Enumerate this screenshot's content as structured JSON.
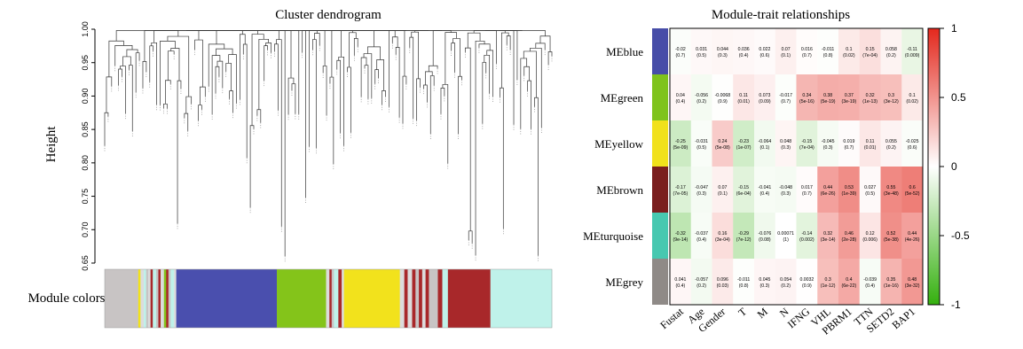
{
  "chart_data": [
    {
      "type": "dendrogram",
      "title": "Cluster dendrogram",
      "ylabel": "Height",
      "ylim": [
        0.65,
        1.0
      ],
      "yticks": [
        "0.65",
        "0.70",
        "0.75",
        "0.80",
        "0.85",
        "0.90",
        "0.95",
        "1.00"
      ],
      "color_bar_label": "Module colors",
      "module_colors": {
        "grey": "#c8c4c4",
        "yellow": "#f2e21c",
        "turquoise": "#bff2ea",
        "brown": "#a8282a",
        "blue": "#4a4fae",
        "green": "#84c41a",
        "light": "#dcdcdc"
      }
    },
    {
      "type": "heatmap",
      "title": "Module-trait relationships",
      "rows": [
        "MEblue",
        "MEgreen",
        "MEyellow",
        "MEbrown",
        "MEturquoise",
        "MEgrey"
      ],
      "row_colors": [
        "#474da8",
        "#7fc31c",
        "#f1e11c",
        "#7a1e1e",
        "#47c8b0",
        "#8f8a87"
      ],
      "columns": [
        "Fustat",
        "Age",
        "Gender",
        "T",
        "M",
        "N",
        "IFNG",
        "VHL",
        "PBRM1",
        "TTN",
        "SETD2",
        "BAP1"
      ],
      "values": [
        [
          -0.02,
          0.031,
          0.044,
          0.036,
          0.022,
          0.07,
          0.016,
          -0.011,
          0.1,
          0.15,
          0.058,
          -0.11
        ],
        [
          0.04,
          -0.056,
          -0.0068,
          0.11,
          0.073,
          -0.017,
          0.34,
          0.38,
          0.37,
          0.32,
          0.3,
          0.1
        ],
        [
          -0.25,
          -0.031,
          0.24,
          -0.23,
          -0.064,
          0.048,
          -0.15,
          -0.045,
          0.019,
          0.11,
          0.055,
          -0.025
        ],
        [
          -0.17,
          -0.047,
          0.07,
          -0.15,
          -0.041,
          -0.048,
          0.017,
          0.44,
          0.53,
          0.027,
          0.55,
          0.6
        ],
        [
          -0.32,
          -0.037,
          0.16,
          -0.29,
          -0.076,
          0.00071,
          -0.14,
          0.32,
          0.46,
          0.12,
          0.52,
          0.44
        ],
        [
          0.041,
          -0.057,
          0.096,
          -0.011,
          0.045,
          0.054,
          0.0032,
          0.3,
          0.4,
          -0.039,
          0.35,
          0.48
        ]
      ],
      "value_labels": [
        [
          "-0.02",
          "0.031",
          "0.044",
          "0.036",
          "0.022",
          "0.07",
          "0.016",
          "-0.011",
          "0.1",
          "0.15",
          "0.058",
          "-0.11"
        ],
        [
          "0.04",
          "-0.056",
          "-0.0068",
          "0.11",
          "0.073",
          "-0.017",
          "0.34",
          "0.38",
          "0.37",
          "0.32",
          "0.3",
          "0.1"
        ],
        [
          "-0.25",
          "-0.031",
          "0.24",
          "-0.23",
          "-0.064",
          "0.048",
          "-0.15",
          "-0.045",
          "0.019",
          "0.11",
          "0.055",
          "-0.025"
        ],
        [
          "-0.17",
          "-0.047",
          "0.07",
          "-0.15",
          "-0.041",
          "-0.048",
          "0.017",
          "0.44",
          "0.53",
          "0.027",
          "0.55",
          "0.6"
        ],
        [
          "-0.32",
          "-0.037",
          "0.16",
          "-0.29",
          "-0.076",
          "0.00071",
          "-0.14",
          "0.32",
          "0.46",
          "0.12",
          "0.52",
          "0.44"
        ],
        [
          "0.041",
          "-0.057",
          "0.096",
          "-0.011",
          "0.045",
          "0.054",
          "0.0032",
          "0.3",
          "0.4",
          "-0.039",
          "0.35",
          "0.48"
        ]
      ],
      "pvalues": [
        [
          "(0.7)",
          "(0.5)",
          "(0.3)",
          "(0.4)",
          "(0.6)",
          "(0.1)",
          "(0.7)",
          "(0.8)",
          "(0.02)",
          "(7e-04)",
          "(0.2)",
          "(0.009)"
        ],
        [
          "(0.4)",
          "(0.2)",
          "(0.9)",
          "(0.01)",
          "(0.09)",
          "(0.7)",
          "(5e-16)",
          "(5e-19)",
          "(3e-19)",
          "(1e-13)",
          "(3e-12)",
          "(0.02)"
        ],
        [
          "(5e-09)",
          "(0.5)",
          "(5e-08)",
          "(1e-07)",
          "(0.1)",
          "(0.3)",
          "(7e-04)",
          "(0.3)",
          "(0.7)",
          "(0.01)",
          "(0.2)",
          "(0.6)"
        ],
        [
          "(7e-05)",
          "(0.3)",
          "(0.1)",
          "(6e-04)",
          "(0.4)",
          "(0.3)",
          "(0.7)",
          "(6e-26)",
          "(1e-39)",
          "(0.5)",
          "(3e-48)",
          "(5e-52)"
        ],
        [
          "(9e-14)",
          "(0.4)",
          "(3e-04)",
          "(7e-12)",
          "(0.08)",
          "(1)",
          "(0.002)",
          "(3e-14)",
          "(2e-28)",
          "(0.006)",
          "(5e-38)",
          "(4e-26)"
        ],
        [
          "(0.4)",
          "(0.2)",
          "(0.03)",
          "(0.8)",
          "(0.3)",
          "(0.2)",
          "(0.9)",
          "(1e-12)",
          "(6e-22)",
          "(0.4)",
          "(1e-16)",
          "(3e-32)"
        ]
      ],
      "scale": {
        "min": -1,
        "max": 1,
        "ticks": [
          "1",
          "0.5",
          "0",
          "-0.5",
          "-1"
        ],
        "colors": [
          "#34b00e",
          "#ffffff",
          "#e3281d"
        ]
      }
    }
  ]
}
